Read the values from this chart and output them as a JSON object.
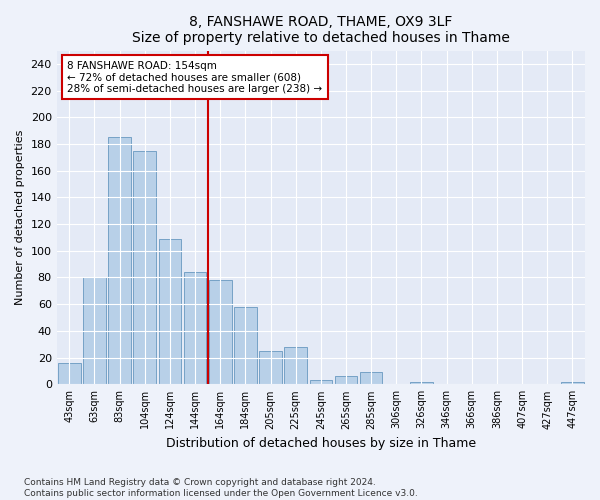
{
  "title1": "8, FANSHAWE ROAD, THAME, OX9 3LF",
  "title2": "Size of property relative to detached houses in Thame",
  "xlabel": "Distribution of detached houses by size in Thame",
  "ylabel": "Number of detached properties",
  "categories": [
    "43sqm",
    "63sqm",
    "83sqm",
    "104sqm",
    "124sqm",
    "144sqm",
    "164sqm",
    "184sqm",
    "205sqm",
    "225sqm",
    "245sqm",
    "265sqm",
    "285sqm",
    "306sqm",
    "326sqm",
    "346sqm",
    "366sqm",
    "386sqm",
    "407sqm",
    "427sqm",
    "447sqm"
  ],
  "values": [
    16,
    80,
    185,
    175,
    109,
    84,
    78,
    58,
    25,
    28,
    3,
    6,
    9,
    0,
    2,
    0,
    0,
    0,
    0,
    0,
    2
  ],
  "bar_color": "#b8d0e8",
  "bar_edge_color": "#6898c0",
  "vline_color": "#cc0000",
  "annotation_text": "8 FANSHAWE ROAD: 154sqm\n← 72% of detached houses are smaller (608)\n28% of semi-detached houses are larger (238) →",
  "annotation_box_color": "#ffffff",
  "annotation_box_edge": "#cc0000",
  "ylim": [
    0,
    250
  ],
  "yticks": [
    0,
    20,
    40,
    60,
    80,
    100,
    120,
    140,
    160,
    180,
    200,
    220,
    240
  ],
  "footer": "Contains HM Land Registry data © Crown copyright and database right 2024.\nContains public sector information licensed under the Open Government Licence v3.0.",
  "bg_color": "#eef2fa",
  "plot_bg_color": "#e4eaf6"
}
